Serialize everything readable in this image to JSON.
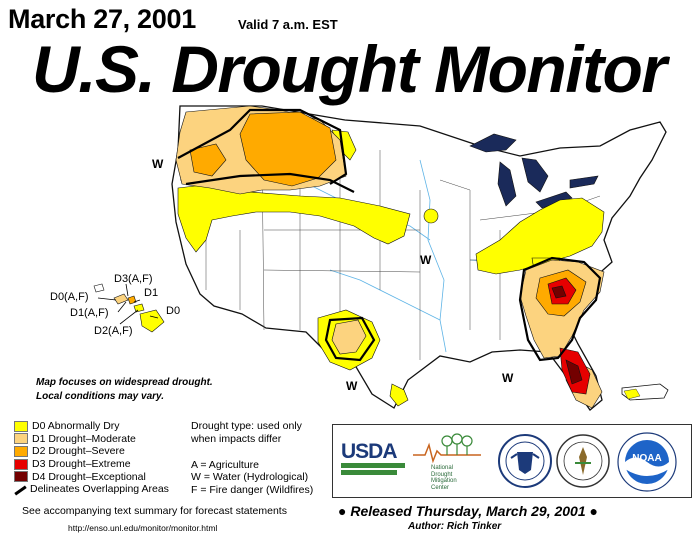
{
  "header": {
    "date": "March 27, 2001",
    "valid": "Valid 7 a.m. EST",
    "title": "U.S. Drought Monitor"
  },
  "map": {
    "labels": {
      "w_northwest": "W",
      "w_central": "W",
      "w_texas": "W",
      "w_southeast": "W",
      "hi_d3": "D3(A,F)",
      "hi_d0af": "D0(A,F)",
      "hi_d1": "D1",
      "hi_d1af": "D1(A,F)",
      "hi_d0": "D0",
      "hi_d2af": "D2(A,F)"
    }
  },
  "note": {
    "line1": "Map focuses on widespread drought.",
    "line2": "Local conditions may vary."
  },
  "legend": {
    "items": [
      {
        "label": "D0 Abnormally Dry",
        "color": "#ffff00"
      },
      {
        "label": "D1 Drought–Moderate",
        "color": "#fcd37f"
      },
      {
        "label": "D2 Drought–Severe",
        "color": "#ffaa00"
      },
      {
        "label": "D3 Drought–Extreme",
        "color": "#e60000"
      },
      {
        "label": "D4 Drought–Exceptional",
        "color": "#730000"
      }
    ],
    "boundary_label": "Delineates Overlapping Areas"
  },
  "drought_types": {
    "intro1": "Drought type: used only",
    "intro2": "when impacts differ",
    "a": "A = Agriculture",
    "w": "W = Water (Hydrological)",
    "f": "F = Fire danger (Wildfires)"
  },
  "logos": {
    "usda": "USDA",
    "ndmc1": "National",
    "ndmc2": "Drought",
    "ndmc3": "Mitigation",
    "ndmc4": "Center",
    "noaa": "NOAA"
  },
  "footer": {
    "accompany": "See accompanying text summary for forecast statements",
    "url": "http://enso.unl.edu/monitor/monitor.html",
    "released": "Released Thursday, March 29, 2001",
    "author": "Author:  Rich Tinker"
  },
  "colors": {
    "d0": "#ffff00",
    "d1": "#fcd37f",
    "d2": "#ffaa00",
    "d3": "#e60000",
    "d4": "#730000",
    "water": "#1a2a5a",
    "rivers": "#5fb4e6"
  }
}
